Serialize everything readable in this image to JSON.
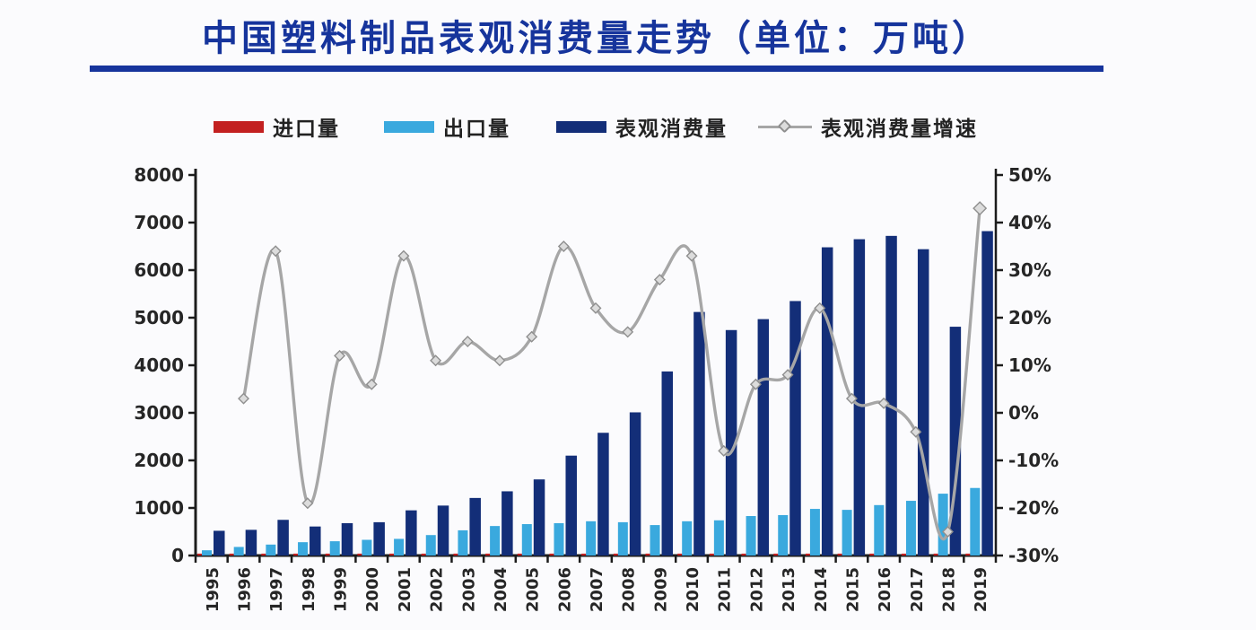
{
  "page": {
    "title": "中国塑料制品表观消费量走势（单位：万吨）",
    "title_color": "#16349c",
    "unit": "万吨"
  },
  "legend": {
    "position": "top",
    "items": [
      {
        "label": "进口量",
        "color": "#c32020",
        "marker": "bar-swatch"
      },
      {
        "label": "出口量",
        "color": "#3aa9de",
        "marker": "bar-swatch"
      },
      {
        "label": "表观消费量",
        "color": "#132e78",
        "marker": "bar-swatch"
      },
      {
        "label": "表观消费量增速",
        "color": "#a6a6a6",
        "marker": "line-with-diamond"
      }
    ]
  },
  "chart_data": {
    "type": "combo-bar-line",
    "title": "中国塑料制品表观消费量走势（单位：万吨）",
    "categories": [
      "1995",
      "1996",
      "1997",
      "1998",
      "1999",
      "2000",
      "2001",
      "2002",
      "2003",
      "2004",
      "2005",
      "2006",
      "2007",
      "2008",
      "2009",
      "2010",
      "2011",
      "2012",
      "2013",
      "2014",
      "2015",
      "2016",
      "2017",
      "2018",
      "2019"
    ],
    "series": [
      {
        "name": "进口量",
        "type": "bar",
        "axis": "left",
        "color": "#c32020",
        "values": [
          40,
          40,
          40,
          40,
          40,
          40,
          40,
          40,
          40,
          40,
          40,
          40,
          40,
          40,
          40,
          40,
          40,
          40,
          40,
          40,
          40,
          40,
          40,
          40,
          40
        ]
      },
      {
        "name": "出口量",
        "type": "bar",
        "axis": "left",
        "color": "#3aa9de",
        "values": [
          110,
          180,
          230,
          280,
          300,
          330,
          350,
          430,
          530,
          620,
          660,
          680,
          720,
          700,
          640,
          720,
          740,
          830,
          850,
          980,
          960,
          1060,
          1150,
          1300,
          1420
        ]
      },
      {
        "name": "表观消费量",
        "type": "bar",
        "axis": "left",
        "color": "#132e78",
        "values": [
          520,
          540,
          750,
          610,
          680,
          700,
          950,
          1050,
          1210,
          1350,
          1600,
          2100,
          2580,
          3010,
          3870,
          5120,
          4740,
          4970,
          5350,
          6480,
          6650,
          6720,
          6440,
          4810,
          6820
        ]
      },
      {
        "name": "表观消费量增速",
        "type": "line",
        "axis": "right",
        "color": "#a6a6a6",
        "marker": "diamond",
        "values_pct": [
          null,
          3,
          34,
          -19,
          12,
          6,
          33,
          11,
          15,
          11,
          16,
          35,
          22,
          17,
          28,
          33,
          -8,
          6,
          8,
          22,
          3,
          2,
          -4,
          -25,
          43
        ]
      }
    ],
    "left_axis": {
      "min": 0,
      "max": 8000,
      "step": 1000,
      "tick_labels": [
        "0",
        "1000",
        "2000",
        "3000",
        "4000",
        "5000",
        "6000",
        "7000",
        "8000"
      ]
    },
    "right_axis": {
      "min": -30,
      "max": 50,
      "step": 10,
      "tick_labels": [
        "-30%",
        "-20%",
        "-10%",
        "0%",
        "10%",
        "20%",
        "30%",
        "40%",
        "50%"
      ]
    },
    "grid": false,
    "legend_position": "top",
    "x_tick_rotation": -90
  }
}
